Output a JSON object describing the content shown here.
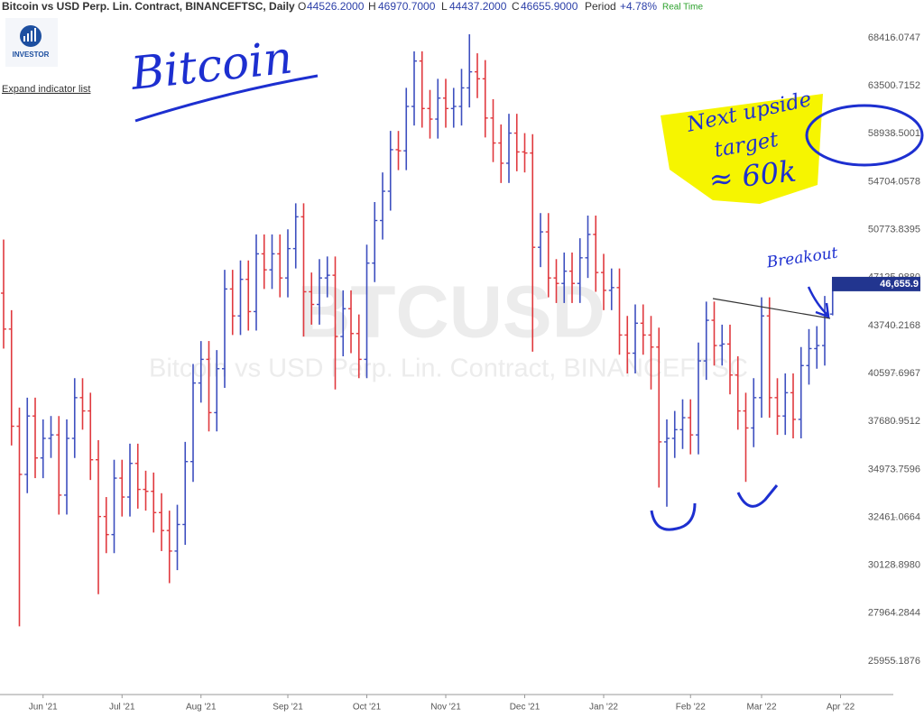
{
  "header": {
    "title": "Bitcoin vs USD Perp. Lin. Contract, BINANCEFTSC, Daily",
    "readout": [
      {
        "key": "O",
        "value": "44526.2000"
      },
      {
        "key": "H",
        "value": "46970.7000"
      },
      {
        "key": "L",
        "value": "44437.2000"
      },
      {
        "key": "C",
        "value": "46655.9000"
      },
      {
        "key": "Period",
        "value": "+4.78%"
      }
    ],
    "status": "Real Time",
    "logo": "INVESTOR",
    "expand": "Expand indicator list"
  },
  "chart_data": {
    "type": "ohlc",
    "watermark": "BTCUSD",
    "watermark_subtitle": "Bitcoin vs USD Perp. Lin. Contract, BINANCEFTSC",
    "annotations": [
      "Bitcoin",
      "Next upside",
      "target",
      "≈ 60k",
      "Breakout"
    ],
    "last_label": "46,655.9",
    "up_color": "#3d4fbf",
    "down_color": "#e0393e",
    "log_scale": true,
    "ylim": [
      24640,
      71060
    ],
    "yticks": [
      68416.0747,
      63500.7152,
      58938.5001,
      54704.0578,
      50773.8395,
      {
        "value": 47125.988,
        "label": "47125.9880"
      },
      43740.2168,
      40597.6967,
      37680.9512,
      34973.7596,
      32461.0664,
      {
        "value": 30128.898,
        "label": "30128.8980"
      },
      27964.2844,
      25955.1876
    ],
    "categories": [
      null,
      null,
      null,
      null,
      null,
      "Jun '21",
      null,
      null,
      null,
      null,
      null,
      null,
      null,
      null,
      null,
      "Jul '21",
      null,
      null,
      null,
      null,
      null,
      null,
      null,
      null,
      null,
      "Aug '21",
      null,
      null,
      null,
      null,
      null,
      null,
      null,
      null,
      null,
      null,
      "Sep '21",
      null,
      null,
      null,
      null,
      null,
      null,
      null,
      null,
      null,
      "Oct '21",
      null,
      null,
      null,
      null,
      null,
      null,
      null,
      null,
      null,
      "Nov '21",
      null,
      null,
      null,
      null,
      null,
      null,
      null,
      null,
      null,
      "Dec '21",
      null,
      null,
      null,
      null,
      null,
      null,
      null,
      null,
      null,
      "Jan '22",
      null,
      null,
      null,
      null,
      null,
      null,
      null,
      null,
      null,
      null,
      "Feb '22",
      null,
      null,
      null,
      null,
      null,
      null,
      null,
      null,
      "Mar '22",
      null,
      null,
      null,
      null,
      null,
      null,
      null,
      null,
      null,
      "Apr '22"
    ],
    "open": [
      46000,
      43500,
      37400,
      34700,
      38000,
      35600,
      36700,
      36900,
      33600,
      36700,
      39100,
      38300,
      35500,
      32500,
      31600,
      34500,
      33500,
      35300,
      33900,
      33800,
      32700,
      31800,
      30800,
      32100,
      35400,
      40000,
      41500,
      38200,
      40900,
      46300,
      44400,
      47000,
      44700,
      48900,
      47700,
      48900,
      47100,
      49300,
      51800,
      46100,
      45200,
      47100,
      47300,
      43000,
      44900,
      43200,
      41500,
      48200,
      51500,
      53900,
      57500,
      57400,
      61500,
      66000,
      61300,
      60300,
      62300,
      61300,
      61500,
      63300,
      64900,
      64200,
      60400,
      58100,
      56300,
      59000,
      57300,
      57200,
      49400,
      50600,
      47100,
      46700,
      47600,
      46700,
      48600,
      50400,
      47500,
      46200,
      46400,
      43100,
      41900,
      43900,
      43100,
      42300,
      36500,
      36700,
      37200,
      37900,
      36900,
      41400,
      44100,
      42400,
      42500,
      40500,
      38300,
      37300,
      39100,
      44400,
      39100,
      38000,
      39400,
      37800,
      41100,
      42200,
      42400,
      44526.2,
      null
    ],
    "high": [
      50000,
      44800,
      38500,
      39100,
      39100,
      37800,
      38000,
      38000,
      37800,
      40300,
      40300,
      39400,
      36600,
      33500,
      35500,
      35500,
      36400,
      36400,
      34900,
      34800,
      33700,
      32800,
      33100,
      36500,
      41200,
      42700,
      42700,
      42100,
      47700,
      47700,
      48400,
      48400,
      50400,
      50400,
      50400,
      50400,
      50800,
      52900,
      52900,
      47500,
      48500,
      48700,
      48700,
      46200,
      46200,
      44500,
      49600,
      53000,
      55500,
      59200,
      59200,
      63300,
      67000,
      67000,
      63100,
      64200,
      64200,
      63300,
      65200,
      68800,
      66800,
      66100,
      62200,
      59800,
      60800,
      60800,
      59000,
      58900,
      52100,
      52100,
      48500,
      49000,
      49000,
      50100,
      51900,
      51900,
      48900,
      47800,
      47800,
      44400,
      45200,
      45200,
      44400,
      43600,
      37800,
      38300,
      39000,
      39000,
      42600,
      45400,
      45400,
      43800,
      43800,
      41700,
      39400,
      40300,
      45700,
      45700,
      40300,
      40600,
      40600,
      42300,
      43500,
      43700,
      45800,
      46970.7,
      null
    ],
    "low": [
      42200,
      36300,
      27400,
      33700,
      34500,
      34500,
      35600,
      32600,
      32600,
      35600,
      37200,
      34400,
      28800,
      30700,
      30700,
      32500,
      32500,
      32900,
      32800,
      31700,
      30800,
      29300,
      29900,
      31100,
      34300,
      38800,
      37100,
      37100,
      39700,
      43100,
      43100,
      43400,
      43400,
      46300,
      46300,
      45700,
      45700,
      47800,
      43000,
      43800,
      43800,
      45700,
      39600,
      41700,
      41900,
      40300,
      40300,
      46800,
      50000,
      52300,
      55700,
      55700,
      59700,
      59500,
      58500,
      58500,
      59500,
      59500,
      59700,
      61400,
      62300,
      58600,
      56400,
      54600,
      54600,
      55600,
      55500,
      42000,
      47900,
      45700,
      45300,
      45300,
      45300,
      45300,
      47100,
      46100,
      44800,
      44800,
      41800,
      40600,
      40600,
      41800,
      39600,
      34000,
      33000,
      35600,
      36100,
      35800,
      35800,
      40200,
      41100,
      41100,
      39300,
      37200,
      34300,
      36200,
      37900,
      37900,
      36900,
      36900,
      36700,
      36700,
      39900,
      40900,
      41100,
      44437.2,
      null
    ],
    "close": [
      43500,
      37400,
      34700,
      38000,
      35600,
      36700,
      36900,
      33600,
      36700,
      39100,
      38300,
      35500,
      32500,
      31600,
      34500,
      33500,
      35300,
      33900,
      33800,
      32700,
      31800,
      30800,
      32100,
      35400,
      40000,
      41500,
      38200,
      40900,
      46300,
      44400,
      47000,
      44700,
      48900,
      47700,
      48900,
      47100,
      49300,
      51800,
      46100,
      45200,
      47100,
      47300,
      43000,
      44900,
      43200,
      41500,
      48200,
      51500,
      53900,
      57500,
      57400,
      61500,
      66000,
      61300,
      60300,
      62300,
      61300,
      61500,
      63300,
      64900,
      64200,
      60400,
      58100,
      56300,
      59000,
      57300,
      57200,
      49400,
      50600,
      47100,
      46700,
      47600,
      46700,
      48600,
      50400,
      47500,
      46200,
      46400,
      43100,
      41900,
      43900,
      43100,
      42300,
      36500,
      36700,
      37200,
      37900,
      36900,
      41400,
      44100,
      42400,
      42500,
      40500,
      38300,
      37300,
      39100,
      44400,
      39100,
      38000,
      39400,
      37800,
      41100,
      42200,
      42400,
      44500,
      46655.9,
      null
    ]
  }
}
